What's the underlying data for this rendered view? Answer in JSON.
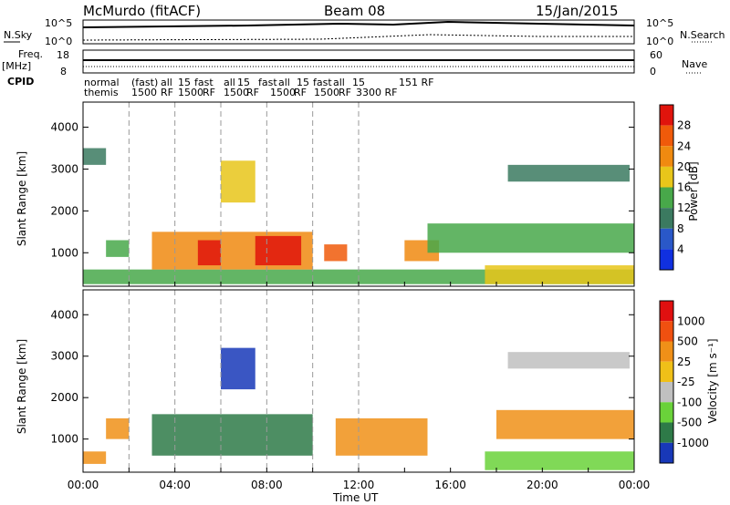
{
  "header": {
    "station": "McMurdo (fitACF)",
    "beam": "Beam 08",
    "date": "15/Jan/2015"
  },
  "panels": {
    "nsky_label": "N.Sky",
    "nsky_ticks": [
      "10^5",
      "10^0"
    ],
    "nsearch_label": "N.Search",
    "nsearch_ticks": [
      "10^5",
      "10^0"
    ],
    "freq_label_1": "Freq.",
    "freq_label_2": "[MHz]",
    "freq_ticks": [
      "18",
      "8"
    ],
    "nave_label": "Nave",
    "nave_ticks": [
      "60",
      "0"
    ],
    "cpid_label": "CPID",
    "cpid_row1": [
      "normal",
      "(fast)",
      "all",
      "15",
      "fast",
      "all",
      "15",
      "fast",
      "all",
      "15",
      "fast",
      "all",
      "15",
      "151 RF"
    ],
    "cpid_row2": [
      "themis",
      "1500",
      "RF",
      "1500",
      "RF",
      "1500",
      "RF",
      "1500",
      "RF",
      "1500",
      "RF",
      "3300 RF"
    ]
  },
  "chart_data": [
    {
      "type": "heatmap",
      "name": "power",
      "ylabel": "Slant Range [km]",
      "xlabel": "",
      "ylim": [
        200,
        4600
      ],
      "yticks": [
        1000,
        2000,
        3000,
        4000
      ],
      "xlim_hours": [
        0,
        24
      ],
      "colorbar_label": "Power [dB]",
      "colorbar_ticks": [
        4,
        8,
        12,
        16,
        20,
        24,
        28
      ],
      "colorbar_colors": [
        "#1030e0",
        "#2a58c8",
        "#3b7a60",
        "#48a84a",
        "#e8c61a",
        "#f08a10",
        "#f05a0a",
        "#e0140c"
      ],
      "gridlines_hours": [
        2,
        4,
        6,
        8,
        10,
        12
      ],
      "echo_regions": [
        {
          "t0": 0.0,
          "t1": 1.0,
          "r0": 3100,
          "r1": 3500,
          "level": 2
        },
        {
          "t0": 0.0,
          "t1": 24.0,
          "r0": 250,
          "r1": 600,
          "level": 3
        },
        {
          "t0": 1.0,
          "t1": 2.0,
          "r0": 900,
          "r1": 1300,
          "level": 3
        },
        {
          "t0": 3.0,
          "t1": 10.0,
          "r0": 600,
          "r1": 1500,
          "level": 5
        },
        {
          "t0": 5.0,
          "t1": 6.0,
          "r0": 700,
          "r1": 1300,
          "level": 7
        },
        {
          "t0": 7.5,
          "t1": 9.5,
          "r0": 700,
          "r1": 1400,
          "level": 7
        },
        {
          "t0": 10.5,
          "t1": 11.5,
          "r0": 800,
          "r1": 1200,
          "level": 6
        },
        {
          "t0": 14.0,
          "t1": 15.5,
          "r0": 800,
          "r1": 1300,
          "level": 5
        },
        {
          "t0": 15.0,
          "t1": 24.0,
          "r0": 1000,
          "r1": 1700,
          "level": 3
        },
        {
          "t0": 18.5,
          "t1": 23.8,
          "r0": 2700,
          "r1": 3100,
          "level": 2
        },
        {
          "t0": 17.5,
          "t1": 24.0,
          "r0": 250,
          "r1": 700,
          "level": 4
        },
        {
          "t0": 6.0,
          "t1": 7.5,
          "r0": 2200,
          "r1": 3200,
          "level": 4
        }
      ]
    },
    {
      "type": "heatmap",
      "name": "velocity",
      "ylabel": "Slant Range [km]",
      "xlabel": "Time UT",
      "ylim": [
        200,
        4600
      ],
      "yticks": [
        1000,
        2000,
        3000,
        4000
      ],
      "xlim_hours": [
        0,
        24
      ],
      "xticks": [
        "00:00",
        "04:00",
        "08:00",
        "12:00",
        "16:00",
        "20:00",
        "00:00"
      ],
      "colorbar_label": "Velocity [m s⁻¹]",
      "colorbar_ticks": [
        "1000",
        "500",
        "25",
        "-25",
        "-100",
        "-500",
        "-1000"
      ],
      "colorbar_colors": [
        "#1838b8",
        "#2e7a48",
        "#6ad23a",
        "#c0c0c0",
        "#f0c018",
        "#f09018",
        "#f05010",
        "#e01010"
      ],
      "gridlines_hours": [
        2,
        4,
        6,
        8,
        10,
        12
      ],
      "echo_regions": [
        {
          "t0": 0.0,
          "t1": 1.0,
          "r0": 400,
          "r1": 700,
          "level": 5
        },
        {
          "t0": 1.0,
          "t1": 2.0,
          "r0": 1000,
          "r1": 1500,
          "level": 5
        },
        {
          "t0": 3.0,
          "t1": 10.0,
          "r0": 600,
          "r1": 1600,
          "level": 1
        },
        {
          "t0": 6.0,
          "t1": 7.5,
          "r0": 2200,
          "r1": 3200,
          "level": 0
        },
        {
          "t0": 11.0,
          "t1": 15.0,
          "r0": 600,
          "r1": 1500,
          "level": 5
        },
        {
          "t0": 18.0,
          "t1": 24.0,
          "r0": 1000,
          "r1": 1700,
          "level": 5
        },
        {
          "t0": 18.5,
          "t1": 23.8,
          "r0": 2700,
          "r1": 3100,
          "level": 3
        },
        {
          "t0": 17.5,
          "t1": 24.0,
          "r0": 250,
          "r1": 700,
          "level": 2
        }
      ]
    }
  ]
}
